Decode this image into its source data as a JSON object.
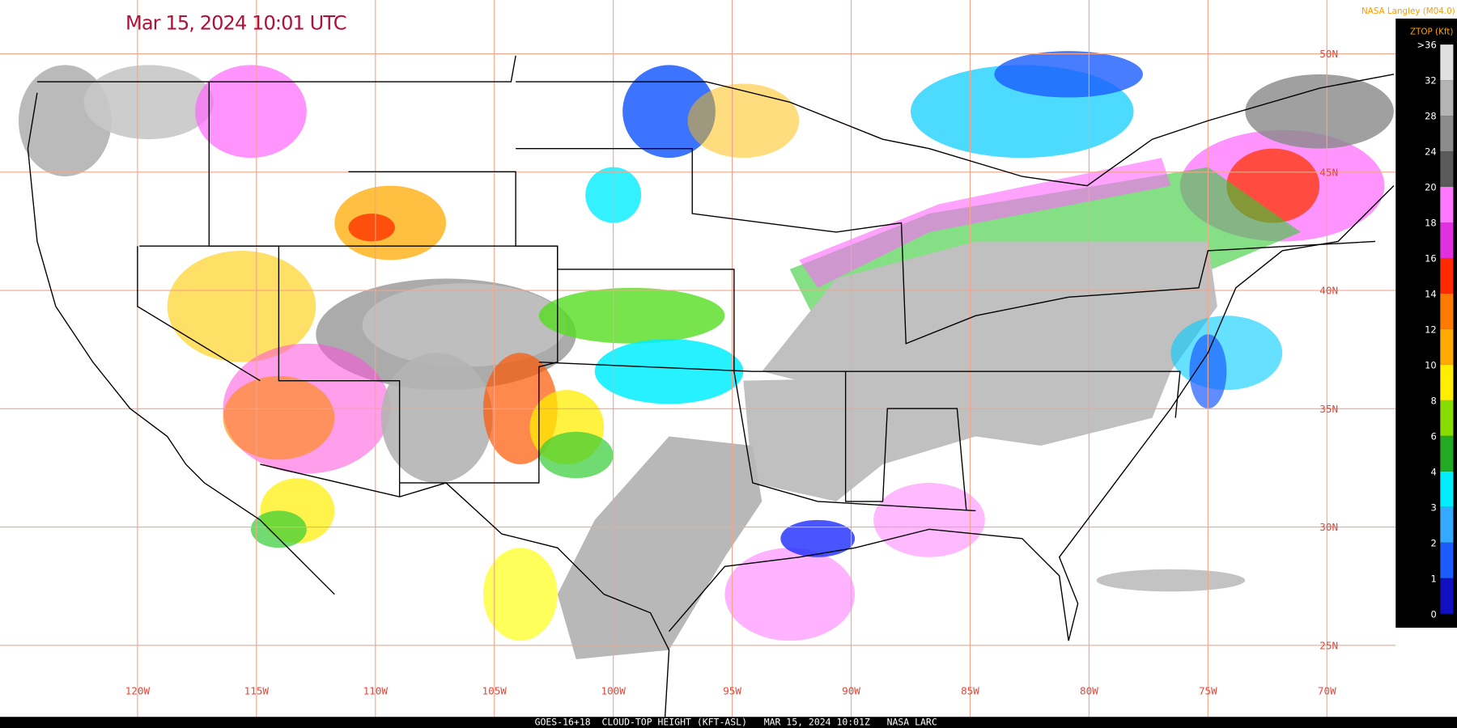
{
  "title": "Mar 15, 2024 10:01 UTC",
  "credit": "NASA Langley (M04.0)",
  "legend": {
    "title": "ZTOP (Kft)",
    "ticks": [
      ">36",
      "32",
      "28",
      "24",
      "20",
      "18",
      "16",
      "14",
      "12",
      "10",
      "8",
      "6",
      "4",
      "3",
      "2",
      "1",
      "0"
    ]
  },
  "longitude_labels": [
    "120W",
    "115W",
    "110W",
    "105W",
    "100W",
    "95W",
    "90W",
    "85W",
    "80W",
    "75W",
    "70W"
  ],
  "latitude_labels": [
    "50N",
    "45N",
    "40N",
    "35N",
    "30N",
    "25N"
  ],
  "footer": "GOES-16+18  CLOUD-TOP HEIGHT (KFT-ASL)   MAR 15, 2024 10:01Z   NASA LARC"
}
